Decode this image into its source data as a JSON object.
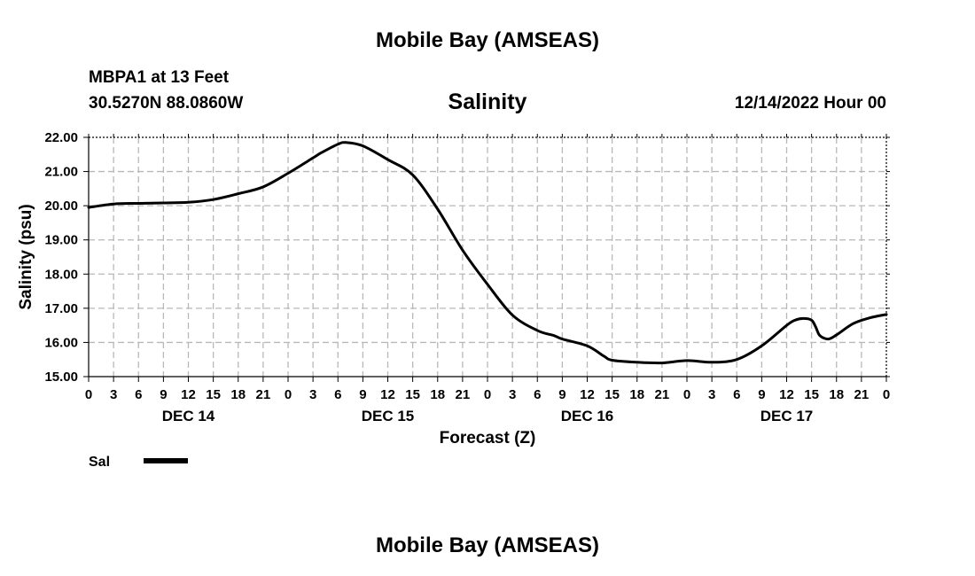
{
  "page": {
    "title": "Mobile Bay (AMSEAS)",
    "footer_title": "Mobile Bay (AMSEAS)",
    "station": "MBPA1 at 13 Feet",
    "coords": "30.5270N  88.0860W",
    "variable": "Salinity",
    "issued": "12/14/2022 Hour 00"
  },
  "chart_data": {
    "type": "line",
    "title": "Salinity",
    "xlabel": "Forecast (Z)",
    "ylabel": "Salinity (psu)",
    "xlim": [
      0,
      96
    ],
    "ylim": [
      15.0,
      22.0
    ],
    "grid": true,
    "x_tick_labels": [
      "0",
      "3",
      "6",
      "9",
      "12",
      "15",
      "18",
      "21",
      "0",
      "3",
      "6",
      "9",
      "12",
      "15",
      "18",
      "21",
      "0",
      "3",
      "6",
      "9",
      "12",
      "15",
      "18",
      "21",
      "0",
      "3",
      "6",
      "9",
      "12",
      "15",
      "18",
      "21",
      "0"
    ],
    "y_tick_labels": [
      "15.00",
      "16.00",
      "17.00",
      "18.00",
      "19.00",
      "20.00",
      "21.00",
      "22.00"
    ],
    "date_labels": [
      {
        "label": "DEC 14",
        "x": 12
      },
      {
        "label": "DEC 15",
        "x": 36
      },
      {
        "label": "DEC 16",
        "x": 60
      },
      {
        "label": "DEC 17",
        "x": 84
      }
    ],
    "legend": {
      "position": "bottom-left"
    },
    "series": [
      {
        "name": "Sal",
        "color": "#000000",
        "x": [
          0,
          3,
          6,
          9,
          12,
          15,
          18,
          21,
          24,
          27,
          28,
          30,
          31,
          33,
          36,
          39,
          42,
          45,
          48,
          51,
          54,
          56,
          57,
          60,
          62,
          63,
          66,
          69,
          72,
          75,
          78,
          81,
          84,
          85,
          86,
          87,
          87.5,
          88,
          89,
          90,
          92,
          94,
          96
        ],
        "y": [
          19.95,
          20.05,
          20.07,
          20.08,
          20.1,
          20.18,
          20.35,
          20.55,
          20.95,
          21.4,
          21.55,
          21.8,
          21.85,
          21.75,
          21.35,
          20.9,
          19.9,
          18.7,
          17.7,
          16.8,
          16.35,
          16.2,
          16.1,
          15.9,
          15.6,
          15.48,
          15.42,
          15.4,
          15.47,
          15.42,
          15.5,
          15.9,
          16.5,
          16.65,
          16.7,
          16.65,
          16.45,
          16.2,
          16.1,
          16.22,
          16.55,
          16.72,
          16.82
        ]
      }
    ]
  }
}
